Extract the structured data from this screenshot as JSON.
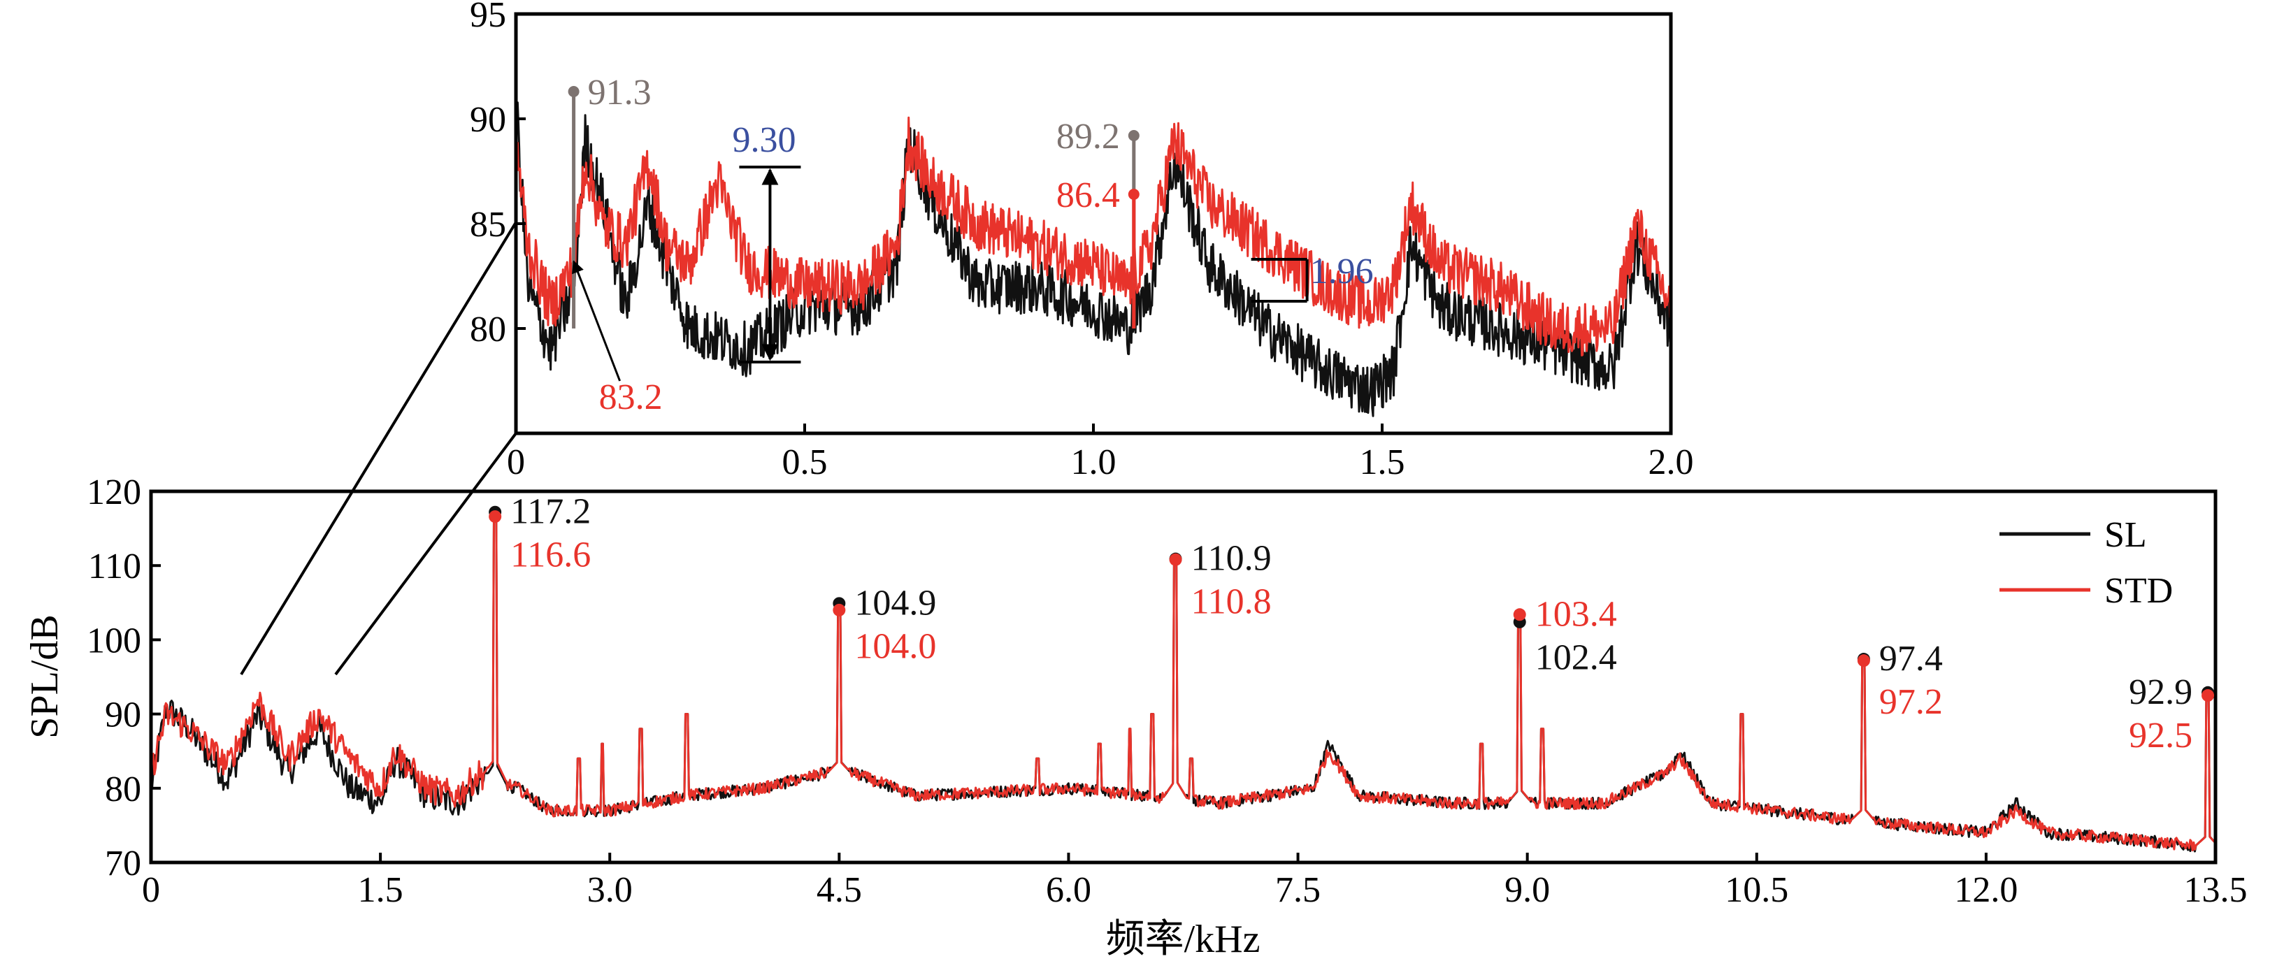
{
  "chart_data": [
    {
      "id": "main",
      "type": "line",
      "title": "",
      "xlabel": "频率/kHz",
      "ylabel": "SPL/dB",
      "xlim": [
        0,
        13.5
      ],
      "ylim": [
        70,
        120
      ],
      "x_ticks": [
        "0",
        "1.5",
        "3.0",
        "4.5",
        "6.0",
        "7.5",
        "9.0",
        "10.5",
        "12.0",
        "13.5"
      ],
      "y_ticks": [
        "70",
        "80",
        "90",
        "100",
        "110",
        "120"
      ],
      "legend_position": "top-right",
      "series": [
        {
          "name": "SL",
          "color": "#111111",
          "baseline": [
            [
              0,
              80
            ],
            [
              0.1,
              91
            ],
            [
              0.25,
              88
            ],
            [
              0.5,
              81
            ],
            [
              0.7,
              90
            ],
            [
              0.9,
              82
            ],
            [
              1.1,
              88
            ],
            [
              1.3,
              80
            ],
            [
              1.5,
              78
            ],
            [
              1.6,
              84
            ],
            [
              1.8,
              79
            ],
            [
              2.0,
              78
            ],
            [
              2.15,
              81
            ],
            [
              2.4,
              80
            ],
            [
              2.6,
              77
            ],
            [
              3.0,
              77
            ],
            [
              3.5,
              79
            ],
            [
              4.0,
              80
            ],
            [
              4.4,
              82
            ],
            [
              4.6,
              82
            ],
            [
              5.0,
              79
            ],
            [
              6.0,
              80
            ],
            [
              7.0,
              78
            ],
            [
              7.6,
              80
            ],
            [
              7.7,
              86
            ],
            [
              7.9,
              79
            ],
            [
              8.5,
              78
            ],
            [
              9.0,
              78
            ],
            [
              9.5,
              78
            ],
            [
              9.9,
              82
            ],
            [
              10.0,
              85
            ],
            [
              10.2,
              78
            ],
            [
              11.0,
              76
            ],
            [
              11.5,
              75
            ],
            [
              12.0,
              74
            ],
            [
              12.2,
              78
            ],
            [
              12.4,
              74
            ],
            [
              13.0,
              73
            ],
            [
              13.5,
              72
            ]
          ]
        },
        {
          "name": "STD",
          "color": "#e8332b",
          "baseline": [
            [
              0,
              82
            ],
            [
              0.1,
              90
            ],
            [
              0.25,
              88
            ],
            [
              0.5,
              83
            ],
            [
              0.7,
              92
            ],
            [
              0.9,
              84
            ],
            [
              1.1,
              90
            ],
            [
              1.3,
              84
            ],
            [
              1.5,
              80
            ],
            [
              1.6,
              85
            ],
            [
              1.8,
              80
            ],
            [
              2.0,
              79
            ],
            [
              2.15,
              82
            ],
            [
              2.4,
              80
            ],
            [
              2.6,
              77
            ],
            [
              3.0,
              77
            ],
            [
              3.5,
              79
            ],
            [
              4.0,
              80
            ],
            [
              4.4,
              82
            ],
            [
              4.6,
              82
            ],
            [
              5.0,
              79
            ],
            [
              6.0,
              80
            ],
            [
              7.0,
              78
            ],
            [
              7.6,
              80
            ],
            [
              7.7,
              85
            ],
            [
              7.9,
              79
            ],
            [
              8.5,
              78
            ],
            [
              9.0,
              78
            ],
            [
              9.5,
              78
            ],
            [
              9.9,
              82
            ],
            [
              10.0,
              84
            ],
            [
              10.2,
              78
            ],
            [
              11.0,
              76
            ],
            [
              11.5,
              75
            ],
            [
              12.0,
              74
            ],
            [
              12.2,
              77
            ],
            [
              12.4,
              74
            ],
            [
              13.0,
              73
            ],
            [
              13.5,
              72
            ]
          ]
        }
      ],
      "peaks": [
        {
          "x": 2.25,
          "sl": 117.2,
          "std": 116.6,
          "sl_label": "117.2",
          "std_label": "116.6"
        },
        {
          "x": 4.5,
          "sl": 104.9,
          "std": 104.0,
          "sl_label": "104.9",
          "std_label": "104.0"
        },
        {
          "x": 6.7,
          "sl": 110.9,
          "std": 110.8,
          "sl_label": "110.9",
          "std_label": "110.8"
        },
        {
          "x": 8.95,
          "sl": 102.4,
          "std": 103.4,
          "sl_label": "102.4",
          "std_label": "103.4"
        },
        {
          "x": 11.2,
          "sl": 97.4,
          "std": 97.2,
          "sl_label": "97.4",
          "std_label": "97.2"
        },
        {
          "x": 13.45,
          "sl": 92.9,
          "std": 92.5,
          "sl_label": "92.9",
          "std_label": "92.5"
        }
      ],
      "minor_peaks": [
        2.8,
        2.95,
        3.2,
        3.5,
        5.8,
        6.2,
        6.4,
        6.55,
        6.8,
        8.7,
        9.1,
        10.4
      ]
    },
    {
      "id": "inset",
      "type": "line",
      "title": "",
      "xlabel": "",
      "ylabel": "",
      "xlim": [
        0,
        2.0
      ],
      "ylim": [
        75,
        95
      ],
      "x_ticks": [
        "0",
        "0.5",
        "1.0",
        "1.5",
        "2.0"
      ],
      "y_ticks": [
        "80",
        "85",
        "90",
        "95"
      ],
      "zoom_source_range": [
        0,
        2.0
      ],
      "series": [
        {
          "name": "SL",
          "color": "#111111",
          "baseline": [
            [
              0,
              91
            ],
            [
              0.02,
              82
            ],
            [
              0.06,
              79
            ],
            [
              0.1,
              82
            ],
            [
              0.12,
              89
            ],
            [
              0.15,
              86
            ],
            [
              0.19,
              81
            ],
            [
              0.23,
              86
            ],
            [
              0.26,
              83
            ],
            [
              0.3,
              80
            ],
            [
              0.4,
              79
            ],
            [
              0.5,
              81
            ],
            [
              0.6,
              81
            ],
            [
              0.66,
              83
            ],
            [
              0.68,
              89
            ],
            [
              0.72,
              86
            ],
            [
              0.8,
              82
            ],
            [
              0.9,
              82
            ],
            [
              1.0,
              81
            ],
            [
              1.06,
              80
            ],
            [
              1.1,
              82
            ],
            [
              1.14,
              88
            ],
            [
              1.2,
              83
            ],
            [
              1.3,
              80
            ],
            [
              1.4,
              78
            ],
            [
              1.48,
              77
            ],
            [
              1.52,
              78
            ],
            [
              1.55,
              84
            ],
            [
              1.6,
              81
            ],
            [
              1.7,
              80
            ],
            [
              1.8,
              79
            ],
            [
              1.9,
              78
            ],
            [
              1.94,
              84
            ],
            [
              2.0,
              80
            ]
          ]
        },
        {
          "name": "STD",
          "color": "#e8332b",
          "baseline": [
            [
              0,
              89
            ],
            [
              0.02,
              84
            ],
            [
              0.06,
              81
            ],
            [
              0.1,
              83
            ],
            [
              0.12,
              88
            ],
            [
              0.15,
              85
            ],
            [
              0.19,
              84
            ],
            [
              0.23,
              88
            ],
            [
              0.26,
              84
            ],
            [
              0.3,
              83
            ],
            [
              0.35,
              87
            ],
            [
              0.4,
              83
            ],
            [
              0.5,
              82
            ],
            [
              0.6,
              82
            ],
            [
              0.66,
              84
            ],
            [
              0.68,
              89
            ],
            [
              0.72,
              87
            ],
            [
              0.8,
              85
            ],
            [
              0.9,
              84
            ],
            [
              1.0,
              83
            ],
            [
              1.06,
              82
            ],
            [
              1.1,
              84
            ],
            [
              1.14,
              89
            ],
            [
              1.2,
              86
            ],
            [
              1.3,
              84
            ],
            [
              1.4,
              82
            ],
            [
              1.48,
              81
            ],
            [
              1.52,
              82
            ],
            [
              1.55,
              86
            ],
            [
              1.6,
              83
            ],
            [
              1.7,
              82
            ],
            [
              1.8,
              80
            ],
            [
              1.9,
              80
            ],
            [
              1.94,
              85
            ],
            [
              2.0,
              81
            ]
          ]
        }
      ],
      "annotations": [
        {
          "kind": "peak",
          "x": 0.1,
          "y": 91.3,
          "label": "91.3",
          "color": "#7d7370"
        },
        {
          "kind": "peak",
          "x": 1.07,
          "y": 89.2,
          "label": "89.2",
          "color": "#7d7370"
        },
        {
          "kind": "peak",
          "x": 1.07,
          "y": 86.4,
          "label": "86.4",
          "color": "#e8332b"
        },
        {
          "kind": "point",
          "x": 0.1,
          "y": 83.2,
          "label": "83.2",
          "color": "#e8332b"
        },
        {
          "kind": "gap",
          "x": 0.44,
          "y_top": 87.7,
          "y_bottom": 78.4,
          "label": "9.30",
          "color": "#3a4f9f"
        },
        {
          "kind": "gap",
          "x": 1.37,
          "y_top": 83.3,
          "y_bottom": 81.3,
          "label": "1.96",
          "color": "#3a4f9f"
        }
      ]
    }
  ]
}
